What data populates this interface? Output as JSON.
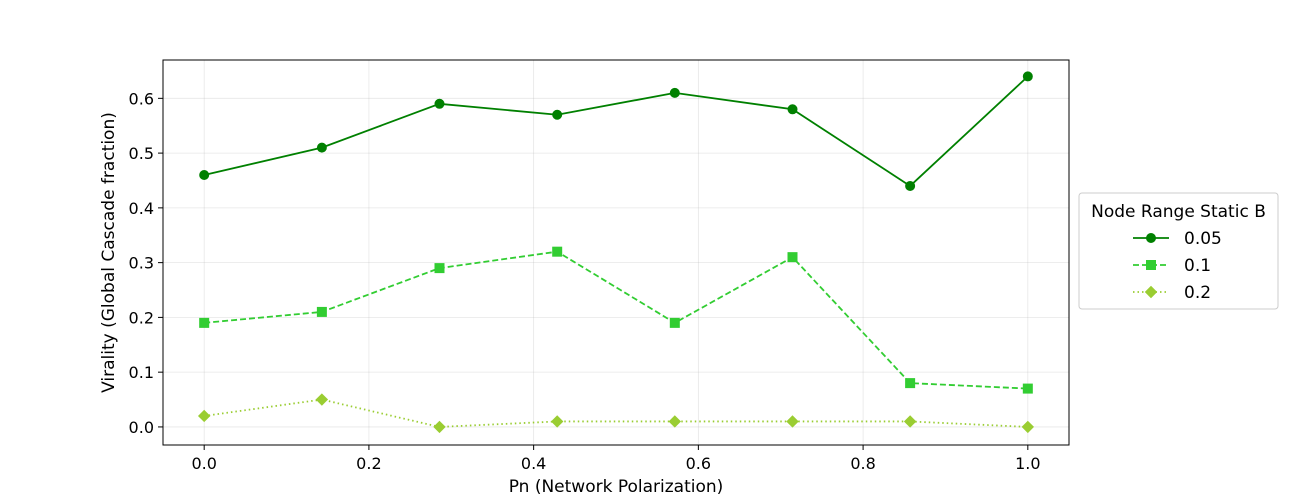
{
  "chart_data": {
    "type": "line",
    "title": "",
    "xlabel": "Pn (Network Polarization)",
    "ylabel": "Virality (Global Cascade fraction)",
    "xlim": [
      -0.05,
      1.05
    ],
    "ylim": [
      -0.033,
      0.67
    ],
    "xticks": [
      0.0,
      0.2,
      0.4,
      0.6,
      0.8,
      1.0
    ],
    "xtick_labels": [
      "0.0",
      "0.2",
      "0.4",
      "0.6",
      "0.8",
      "1.0"
    ],
    "yticks": [
      0.0,
      0.1,
      0.2,
      0.3,
      0.4,
      0.5,
      0.6
    ],
    "ytick_labels": [
      "0.0",
      "0.1",
      "0.2",
      "0.3",
      "0.4",
      "0.5",
      "0.6"
    ],
    "grid": true,
    "x": [
      0.0,
      0.1429,
      0.2857,
      0.4286,
      0.5714,
      0.7143,
      0.8571,
      1.0
    ],
    "legend": {
      "title": "Node Range Static B",
      "placement": "center-right outside"
    },
    "series": [
      {
        "name": "0.05",
        "values": [
          0.46,
          0.51,
          0.59,
          0.57,
          0.61,
          0.58,
          0.44,
          0.64
        ],
        "color": "#008000",
        "marker": "circle",
        "linestyle": "solid"
      },
      {
        "name": "0.1",
        "values": [
          0.19,
          0.21,
          0.29,
          0.32,
          0.19,
          0.31,
          0.08,
          0.07
        ],
        "color": "#32cd32",
        "marker": "square",
        "linestyle": "dashed"
      },
      {
        "name": "0.2",
        "values": [
          0.02,
          0.05,
          0.0,
          0.01,
          0.01,
          0.01,
          0.01,
          0.0
        ],
        "color": "#9acd32",
        "marker": "diamond",
        "linestyle": "dotted"
      }
    ]
  }
}
